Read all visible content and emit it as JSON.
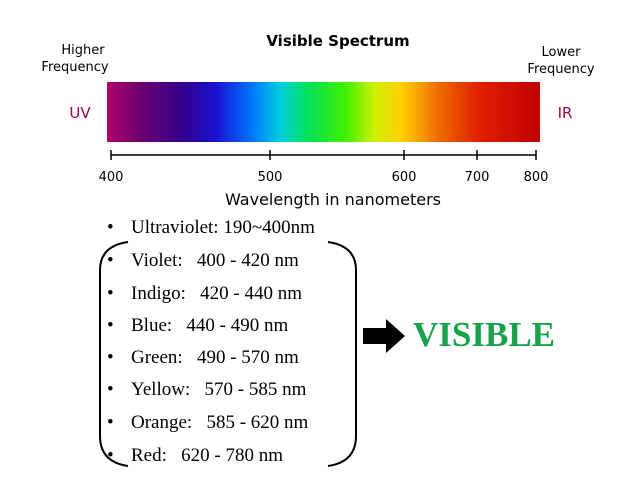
{
  "header": {
    "title": "Visible Spectrum",
    "left_label": [
      "Higher",
      "Frequency"
    ],
    "right_label": [
      "Lower",
      "Frequency"
    ],
    "left_end": "UV",
    "right_end": "IR"
  },
  "axis": {
    "ticks": [
      400,
      500,
      600,
      700,
      800
    ],
    "label": "Wavelength in nanometers"
  },
  "list": [
    "Ultraviolet: 190~400nm",
    "Violet:   400 - 420 nm",
    "Indigo:   420 - 440 nm",
    "Blue:   440 - 490 nm",
    "Green:   490 - 570 nm",
    "Yellow:   570 - 585 nm",
    "Orange:   585 - 620 nm",
    "Red:   620 - 780 nm"
  ],
  "callout": "VISIBLE"
}
